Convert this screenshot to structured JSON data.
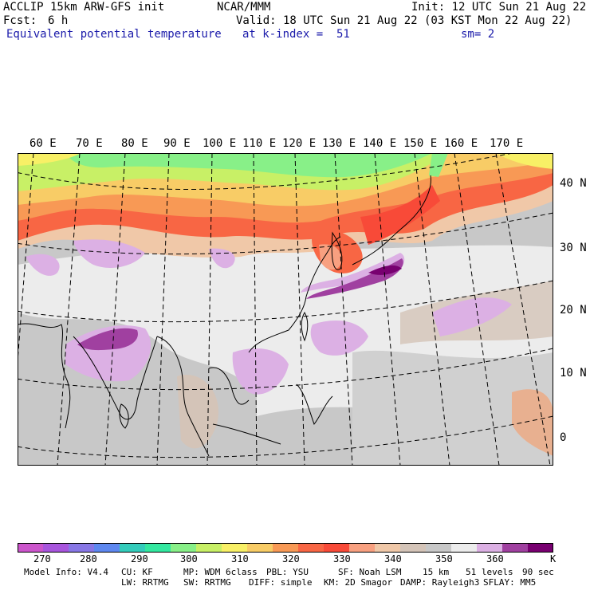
{
  "header": {
    "model": "ACCLIP 15km ARW-GFS init",
    "org": "NCAR/MMM",
    "init": "Init: 12 UTC Sun 21 Aug 22",
    "fcst_label": "Fcst:",
    "fcst_value": "6 h",
    "valid": "Valid: 18 UTC Sun 21 Aug 22 (03 KST Mon 22 Aug 22)",
    "field": "Equivalent potential temperature",
    "level": "at k-index =  51",
    "smooth": "sm= 2"
  },
  "longitude_labels": [
    "60 E",
    "70 E",
    "80 E",
    "90 E",
    "100 E",
    "110 E",
    "120 E",
    "130 E",
    "140 E",
    "150 E",
    "160 E",
    "170 E"
  ],
  "latitude_labels": [
    "40 N",
    "30 N",
    "20 N",
    "10 N",
    "0"
  ],
  "colorbar": {
    "colors": [
      "#cc55cc",
      "#a855dd",
      "#8877e6",
      "#5e88f0",
      "#33ccbb",
      "#33e8a0",
      "#88f088",
      "#c8f066",
      "#f8f066",
      "#f8cc66",
      "#f89955",
      "#f86644",
      "#f84a38",
      "#f8a080",
      "#f0c8a8",
      "#d4c4b8",
      "#c8c8c8",
      "#ececec",
      "#dcb0e4",
      "#a040a0",
      "#780070"
    ],
    "labels": [
      "270",
      "280",
      "290",
      "300",
      "310",
      "320",
      "330",
      "340",
      "350",
      "360"
    ],
    "unit": "K"
  },
  "footer": {
    "line1": [
      "Model Info: V4.4",
      "CU: KF",
      "MP: WDM 6class",
      "PBL: YSU",
      "SF: Noah LSM",
      "15 km",
      "51 levels",
      "90 sec"
    ],
    "line2": [
      "LW: RRTMG",
      "SW: RRTMG",
      "DIFF: simple",
      "KM: 2D Smagor",
      "DAMP: Rayleigh3",
      "SFLAY: MM5"
    ]
  }
}
